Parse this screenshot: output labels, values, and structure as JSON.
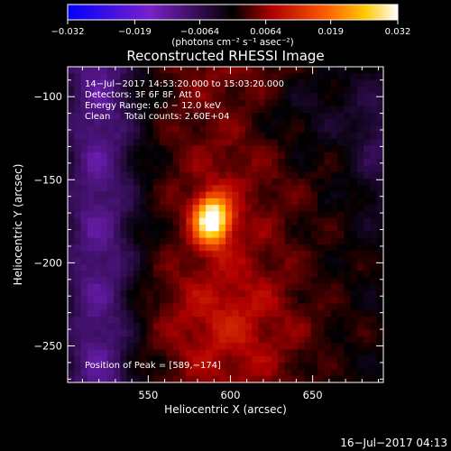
{
  "chart_data": {
    "type": "heatmap",
    "title": "Reconstructed RHESSI Image",
    "xlabel": "Heliocentric X (arcsec)",
    "ylabel": "Heliocentric Y (arcsec)",
    "xlim": [
      501,
      693
    ],
    "ylim": [
      -272,
      -82
    ],
    "x_ticks": [
      550,
      600,
      650
    ],
    "x_tick_labels": [
      "550",
      "600",
      "650"
    ],
    "y_ticks": [
      -100,
      -150,
      -200,
      -250
    ],
    "y_tick_labels": [
      "−100",
      "−150",
      "−200",
      "−250"
    ],
    "colorbar": {
      "range": [
        -0.032,
        0.032
      ],
      "ticks": [
        -0.032,
        -0.019,
        -0.0064,
        0.0064,
        0.019,
        0.032
      ],
      "tick_labels": [
        "−0.032",
        "−0.019",
        "−0.0064",
        "0.0064",
        "0.019",
        "0.032"
      ],
      "unit_label": "(photons cm⁻² s⁻¹ asec⁻²)",
      "colormap": "blue-purple-red-orange-yellow-white"
    },
    "peak": {
      "x": 589,
      "y": -174,
      "value": 0.032
    },
    "info_lines": [
      "14−Jul−2017 14:53:20.000 to 15:03:20.000",
      "Detectors: 3F 6F 8F, Att 0",
      "Energy Range: 6.0 − 12.0 keV",
      "Clean     Total counts: 2.60E+04"
    ],
    "peak_label": "Position of Peak = [589,−174]",
    "timestamp": "16−Jul−2017 04:13"
  }
}
